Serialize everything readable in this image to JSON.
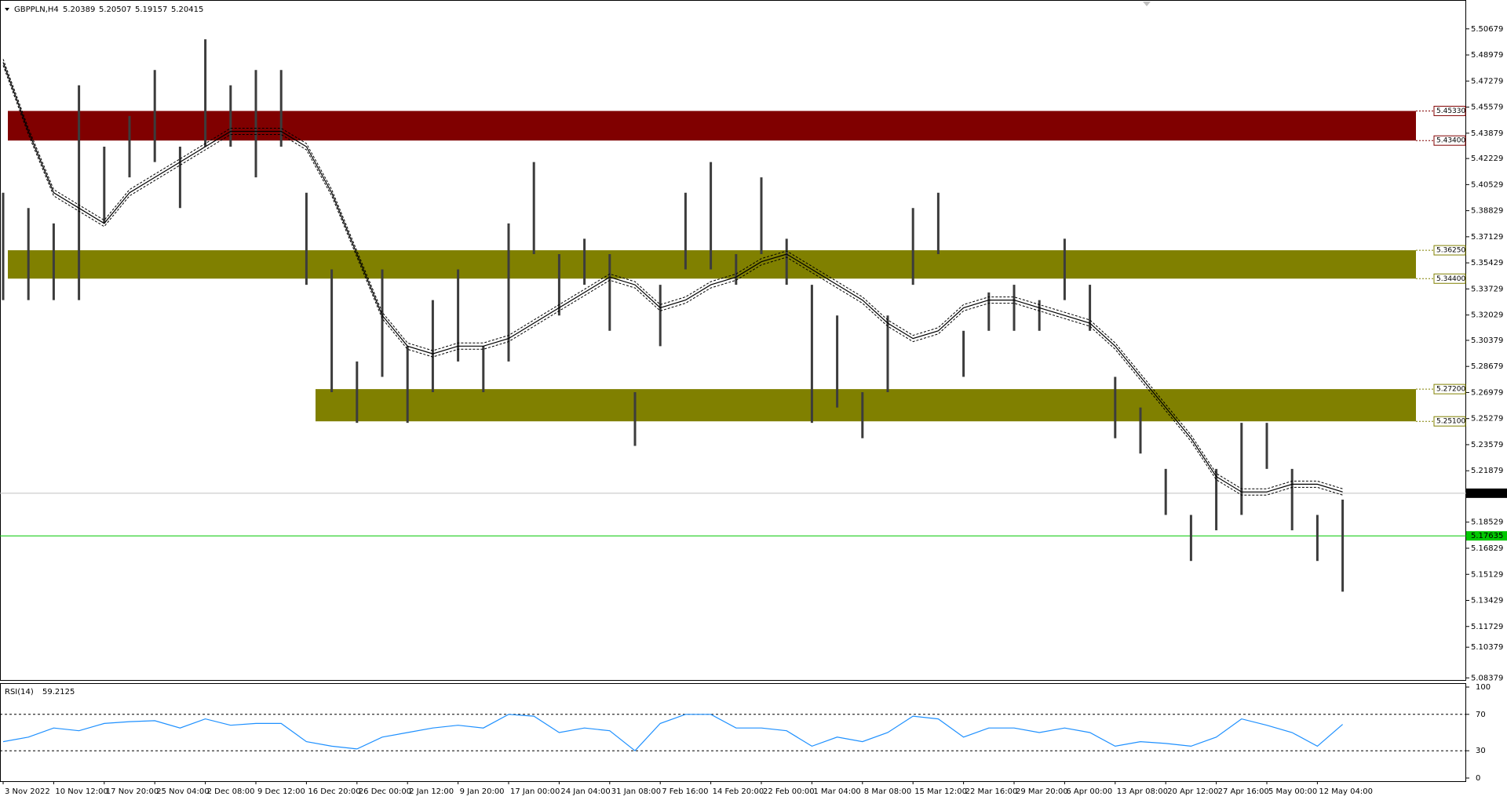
{
  "chart_data": [
    {
      "type": "ohlc",
      "title": "GBPPLN,H4",
      "quote": [
        5.20389,
        5.20507,
        5.19157,
        5.20415
      ],
      "categories": [
        "3 Nov 2022",
        "10 Nov 12:00",
        "17 Nov 20:00",
        "25 Nov 04:00",
        "2 Dec 08:00",
        "9 Dec 12:00",
        "16 Dec 20:00",
        "26 Dec 00:00",
        "2 Jan 12:00",
        "9 Jan 20:00",
        "17 Jan 00:00",
        "24 Jan 04:00",
        "31 Jan 08:00",
        "7 Feb 16:00",
        "14 Feb 20:00",
        "22 Feb 00:00",
        "1 Mar 04:00",
        "8 Mar 08:00",
        "15 Mar 12:00",
        "22 Mar 16:00",
        "29 Mar 20:00",
        "6 Apr 00:00",
        "13 Apr 08:00",
        "20 Apr 12:00",
        "27 Apr 16:00",
        "5 May 00:00",
        "12 May 04:00"
      ],
      "high": [
        5.4,
        5.39,
        5.38,
        5.47,
        5.43,
        5.45,
        5.48,
        5.43,
        5.5,
        5.47,
        5.48,
        5.48,
        5.4,
        5.35,
        5.29,
        5.35,
        5.3,
        5.33,
        5.35,
        5.3,
        5.38,
        5.42,
        5.36,
        5.37,
        5.36,
        5.27,
        5.34,
        5.4,
        5.42,
        5.36,
        5.41,
        5.37,
        5.34,
        5.32,
        5.27,
        5.32,
        5.39,
        5.4,
        5.31,
        5.335,
        5.34,
        5.33,
        5.37,
        5.34,
        5.28,
        5.26,
        5.22,
        5.19,
        5.22,
        5.25,
        5.25,
        5.22,
        5.19,
        5.2
      ],
      "low": [
        5.33,
        5.33,
        5.33,
        5.33,
        5.38,
        5.41,
        5.42,
        5.39,
        5.43,
        5.43,
        5.41,
        5.43,
        5.34,
        5.27,
        5.25,
        5.28,
        5.25,
        5.27,
        5.29,
        5.27,
        5.29,
        5.36,
        5.32,
        5.34,
        5.31,
        5.235,
        5.3,
        5.35,
        5.35,
        5.34,
        5.36,
        5.34,
        5.25,
        5.26,
        5.24,
        5.27,
        5.34,
        5.36,
        5.28,
        5.31,
        5.31,
        5.31,
        5.33,
        5.31,
        5.24,
        5.23,
        5.19,
        5.16,
        5.18,
        5.19,
        5.22,
        5.18,
        5.16,
        5.14
      ],
      "ma": [
        5.485,
        5.44,
        5.4,
        5.39,
        5.38,
        5.4,
        5.41,
        5.42,
        5.43,
        5.44,
        5.44,
        5.44,
        5.43,
        5.4,
        5.36,
        5.32,
        5.3,
        5.295,
        5.3,
        5.3,
        5.305,
        5.315,
        5.325,
        5.335,
        5.345,
        5.34,
        5.325,
        5.33,
        5.34,
        5.345,
        5.355,
        5.36,
        5.35,
        5.34,
        5.33,
        5.315,
        5.305,
        5.31,
        5.325,
        5.33,
        5.33,
        5.325,
        5.32,
        5.315,
        5.3,
        5.28,
        5.26,
        5.24,
        5.215,
        5.205,
        5.205,
        5.21,
        5.21,
        5.205
      ],
      "color": "#3c3c3c",
      "ma_color": "#000000",
      "ylim": [
        5.0819,
        5.5256
      ],
      "yticks": [
        5.50679,
        5.48979,
        5.47279,
        5.45579,
        5.43879,
        5.42229,
        5.40529,
        5.38829,
        5.37129,
        5.35429,
        5.33729,
        5.32029,
        5.30379,
        5.28679,
        5.26979,
        5.25279,
        5.23579,
        5.21879,
        5.18529,
        5.16829,
        5.15129,
        5.13429,
        5.11729,
        5.10379,
        5.08379
      ],
      "zones": [
        {
          "color": "#800000",
          "range": [
            {
              "value": 5.4533,
              "label": "5.45330"
            },
            {
              "value": 5.434,
              "label": "5.43400"
            }
          ]
        },
        {
          "color": "#808000",
          "range": [
            {
              "value": 5.3625,
              "label": "5.36250"
            },
            {
              "value": 5.344,
              "label": "5.34400"
            }
          ]
        },
        {
          "color": "#808000",
          "range": [
            {
              "value": 5.272,
              "label": "5.27200"
            },
            {
              "value": 5.251,
              "label": "5.25100"
            }
          ]
        }
      ],
      "lines": [
        {
          "value": 5.20415,
          "color": "#c0c0c0",
          "label_color": "#000000"
        },
        {
          "value": 5.17635,
          "color": "#00c800",
          "label_color": "#00c800"
        }
      ]
    },
    {
      "type": "line",
      "title": "RSI(14)",
      "last": 59.2125,
      "values": [
        40,
        45,
        55,
        52,
        60,
        62,
        63,
        55,
        65,
        58,
        60,
        60,
        40,
        35,
        32,
        45,
        50,
        55,
        58,
        55,
        70,
        68,
        50,
        55,
        52,
        30,
        60,
        70,
        70,
        55,
        55,
        52,
        35,
        45,
        40,
        50,
        68,
        65,
        45,
        55,
        55,
        50,
        55,
        50,
        35,
        40,
        38,
        35,
        45,
        65,
        58,
        50,
        35,
        59
      ],
      "color": "#1e90ff",
      "ylim": [
        0,
        100
      ],
      "yticks": [
        100,
        70,
        30,
        0
      ],
      "levels": [
        70,
        30
      ]
    }
  ]
}
